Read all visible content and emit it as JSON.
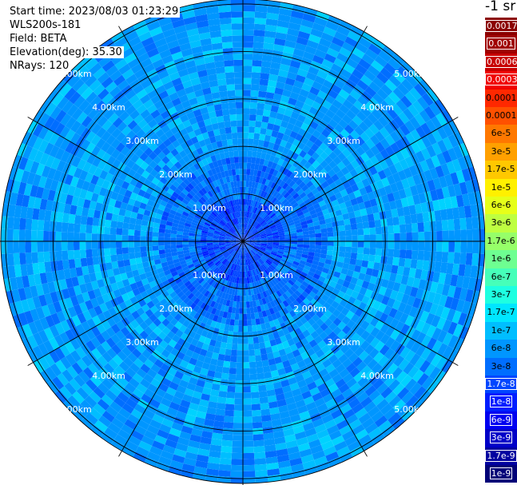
{
  "header": {
    "start_time": "Start time: 2023/08/03 01:23:29",
    "instrument": "WLS200s-181",
    "field": "Field: BETA",
    "elevation": "Elevation(deg): 35.30",
    "nrays": "NRays: 120"
  },
  "colorbar": {
    "units": "-1 sr",
    "labels": [
      "0.0017",
      "0.001",
      "0.0006",
      "0.0003",
      "0.00017",
      "0.0001",
      "6e-5",
      "3e-5",
      "1.7e-5",
      "1e-5",
      "6e-6",
      "3e-6",
      "1.7e-6",
      "1e-6",
      "6e-7",
      "3e-7",
      "1.7e-7",
      "1e-7",
      "6e-8",
      "3e-8",
      "1.7e-8",
      "1e-8",
      "6e-9",
      "3e-9",
      "1.7e-9",
      "1e-9"
    ],
    "colors": [
      "#8b0000",
      "#a00000",
      "#c80000",
      "#f00000",
      "#ff2800",
      "#ff5000",
      "#ff7800",
      "#ffa000",
      "#ffc800",
      "#fff000",
      "#e6ff19",
      "#beff41",
      "#96ff69",
      "#6eff91",
      "#46ffb9",
      "#1effe1",
      "#00e6ff",
      "#00beff",
      "#0096ff",
      "#006eff",
      "#0046ff",
      "#001eff",
      "#0000f0",
      "#0000c8",
      "#0000a0",
      "#000078"
    ],
    "text_colors": [
      "#fff",
      "#fff",
      "#fff",
      "#fff",
      "#000",
      "#000",
      "#000",
      "#000",
      "#000",
      "#000",
      "#000",
      "#000",
      "#000",
      "#000",
      "#000",
      "#000",
      "#000",
      "#000",
      "#000",
      "#000",
      "#fff",
      "#fff",
      "#fff",
      "#fff",
      "#fff",
      "#fff"
    ]
  },
  "chart_data": {
    "type": "heatmap",
    "projection": "polar",
    "field": "BETA",
    "range_rings_km": [
      1,
      2,
      3,
      4,
      5
    ],
    "max_range_km": 5.1,
    "ring_labels": [
      "1.00km",
      "2.00km",
      "3.00km",
      "4.00km",
      "5.00km"
    ],
    "spokes_deg": [
      0,
      30,
      60,
      90,
      120,
      150,
      180,
      210,
      240,
      270,
      300,
      330
    ],
    "n_rays": 120,
    "value_by_range": [
      {
        "range_km": [
          0,
          1.0
        ],
        "beta_sr": "1.7e-8 to 3e-8"
      },
      {
        "range_km": [
          1.0,
          2.0
        ],
        "beta_sr": "3e-8 to 6e-8"
      },
      {
        "range_km": [
          2.0,
          5.1
        ],
        "beta_sr": "6e-8 to 1e-7"
      }
    ],
    "grid": true
  }
}
